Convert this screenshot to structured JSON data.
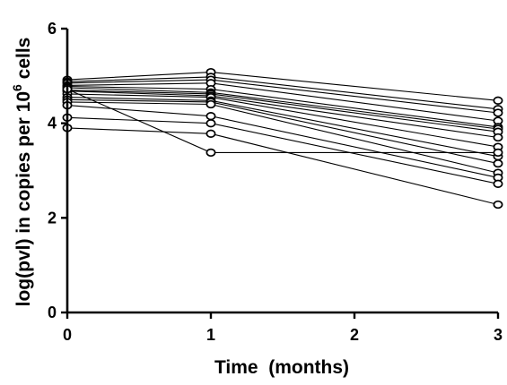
{
  "chart_data": {
    "type": "line",
    "title": "",
    "xlabel": "Time  (months)",
    "ylabel_main": "log(pvl) in copies per 10",
    "ylabel_sup": "6",
    "ylabel_tail": " cells",
    "xlim": [
      0,
      3
    ],
    "ylim": [
      0,
      6
    ],
    "x_ticks": [
      0,
      1,
      2,
      3
    ],
    "y_ticks": [
      0,
      2,
      4,
      6
    ],
    "grid": false,
    "legend": "none",
    "series": [
      {
        "x": [
          0,
          1,
          3
        ],
        "y": [
          4.92,
          5.08,
          4.48
        ]
      },
      {
        "x": [
          0,
          1,
          3
        ],
        "y": [
          4.88,
          4.98,
          4.3
        ]
      },
      {
        "x": [
          0,
          1,
          3
        ],
        "y": [
          4.85,
          4.92,
          4.22
        ]
      },
      {
        "x": [
          0,
          1,
          3
        ],
        "y": [
          4.8,
          4.85,
          4.05
        ]
      },
      {
        "x": [
          0,
          1,
          3
        ],
        "y": [
          4.78,
          4.72,
          3.92
        ]
      },
      {
        "x": [
          0,
          1,
          3
        ],
        "y": [
          4.75,
          4.65,
          3.88
        ]
      },
      {
        "x": [
          0,
          1,
          3
        ],
        "y": [
          4.7,
          4.62,
          3.82
        ]
      },
      {
        "x": [
          0,
          1,
          3
        ],
        "y": [
          4.68,
          4.58,
          3.7
        ]
      },
      {
        "x": [
          0,
          1,
          3
        ],
        "y": [
          4.62,
          4.55,
          3.5
        ]
      },
      {
        "x": [
          0,
          1,
          3
        ],
        "y": [
          4.55,
          4.48,
          3.3
        ]
      },
      {
        "x": [
          0,
          1,
          3
        ],
        "y": [
          4.5,
          4.45,
          3.15
        ]
      },
      {
        "x": [
          0,
          1,
          3
        ],
        "y": [
          4.45,
          4.4,
          2.95
        ]
      },
      {
        "x": [
          0,
          1,
          3
        ],
        "y": [
          4.38,
          4.15,
          2.85
        ]
      },
      {
        "x": [
          0,
          1,
          3
        ],
        "y": [
          4.12,
          4.0,
          2.72
        ]
      },
      {
        "x": [
          0,
          1,
          3
        ],
        "y": [
          3.9,
          3.78,
          2.28
        ]
      },
      {
        "x": [
          0,
          1,
          3
        ],
        "y": [
          4.72,
          3.38,
          3.38
        ]
      }
    ]
  }
}
